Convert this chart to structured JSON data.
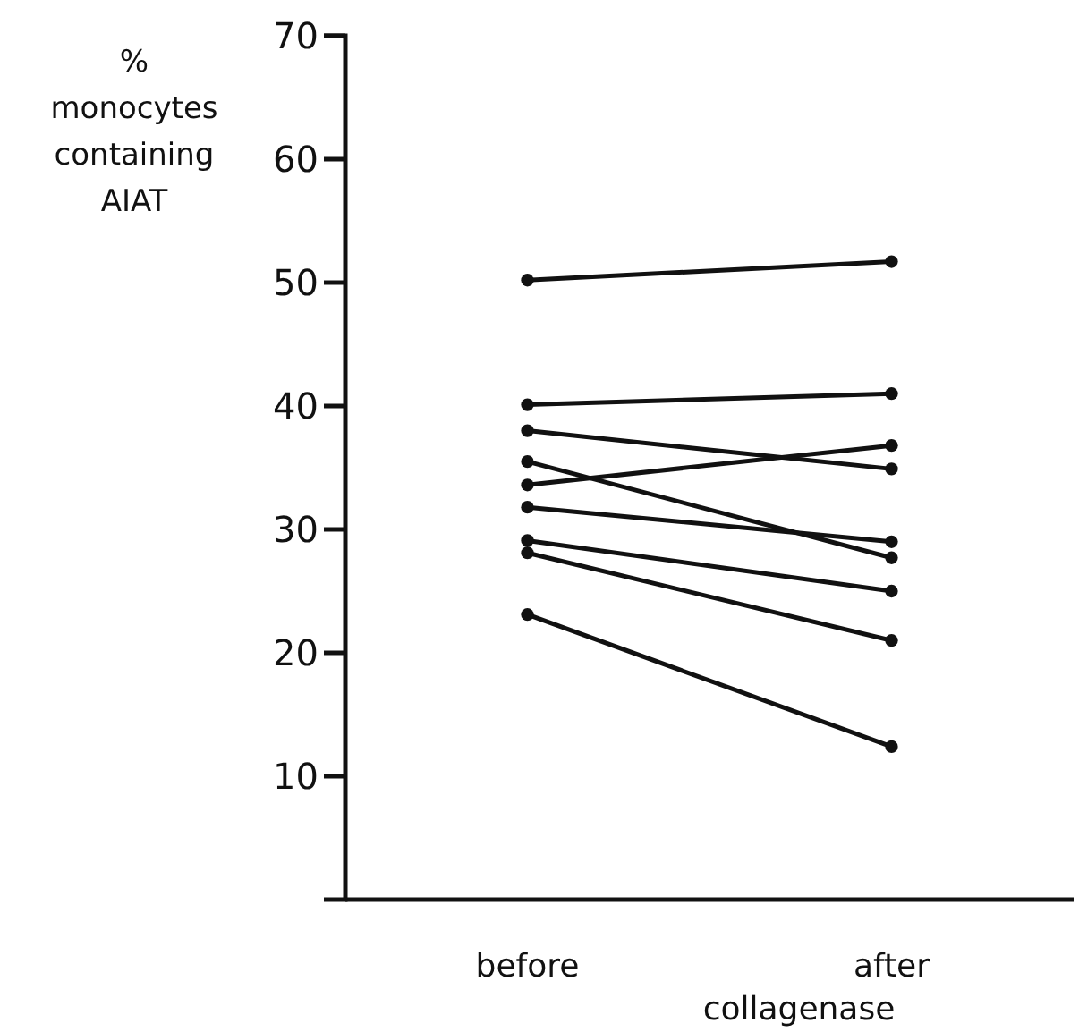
{
  "chart_data": {
    "type": "line",
    "categories": [
      "before",
      "after"
    ],
    "xlabel": "collagenase",
    "ylabel": "% monocytes containing AIAT",
    "ylim": [
      0,
      70
    ],
    "yticks": [
      10,
      20,
      30,
      40,
      50,
      60,
      70
    ],
    "marker": "circle",
    "series": [
      {
        "color": "#111111",
        "values": [
          50.2,
          51.7
        ]
      },
      {
        "color": "#111111",
        "values": [
          40.1,
          41.0
        ]
      },
      {
        "color": "#111111",
        "values": [
          38.0,
          34.9
        ]
      },
      {
        "color": "#111111",
        "values": [
          35.5,
          27.7
        ]
      },
      {
        "color": "#111111",
        "values": [
          33.6,
          36.8
        ]
      },
      {
        "color": "#111111",
        "values": [
          31.8,
          29.0
        ]
      },
      {
        "color": "#111111",
        "values": [
          29.1,
          25.0
        ]
      },
      {
        "color": "#111111",
        "values": [
          28.1,
          21.0
        ]
      },
      {
        "color": "#111111",
        "values": [
          23.1,
          12.4
        ]
      }
    ]
  }
}
